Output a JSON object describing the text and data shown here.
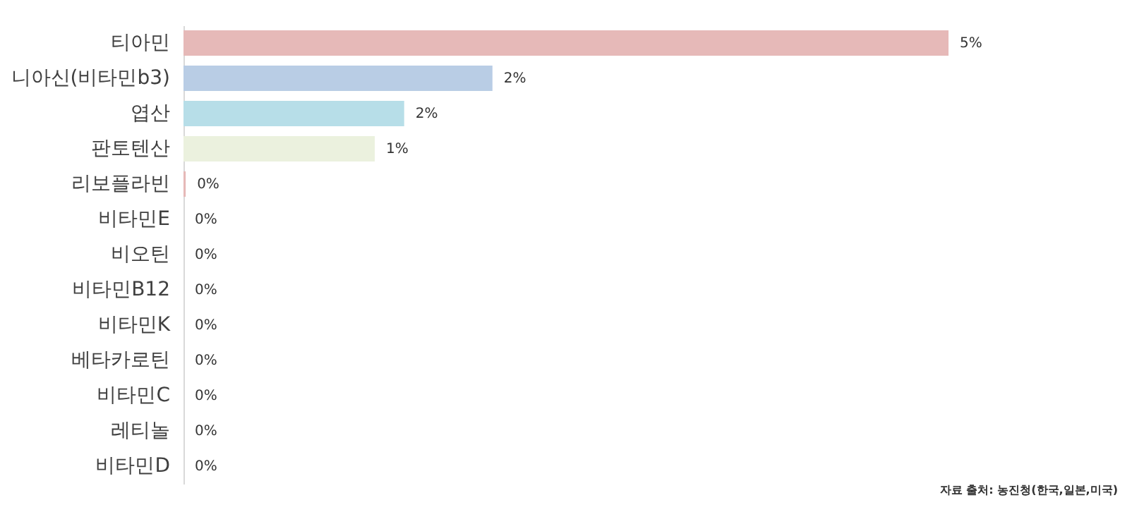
{
  "chart_data": {
    "type": "bar",
    "orientation": "horizontal",
    "categories": [
      "티아민",
      "니아신(비타민b3)",
      "엽산",
      "판토텐산",
      "리보플라빈",
      "비타민E",
      "비오틴",
      "비타민B12",
      "비타민K",
      "베타카로틴",
      "비타민C",
      "레티놀",
      "비타민D"
    ],
    "values": [
      5.2,
      2.1,
      1.5,
      1.3,
      0.015,
      0,
      0,
      0,
      0,
      0,
      0,
      0,
      0
    ],
    "value_labels": [
      "5%",
      "2%",
      "2%",
      "1%",
      "0%",
      "0%",
      "0%",
      "0%",
      "0%",
      "0%",
      "0%",
      "0%",
      "0%"
    ],
    "colors": [
      "#e6b9b8",
      "#b9cde5",
      "#b7dee8",
      "#ebf1de",
      "#e6b9b8",
      "#b9cde5",
      "#b7dee8",
      "#ebf1de",
      "#e6b9b8",
      "#b9cde5",
      "#b7dee8",
      "#ebf1de",
      "#e6b9b8"
    ],
    "annotations": [
      "자료 출처: 농진청(한국,일본,미국)"
    ]
  }
}
